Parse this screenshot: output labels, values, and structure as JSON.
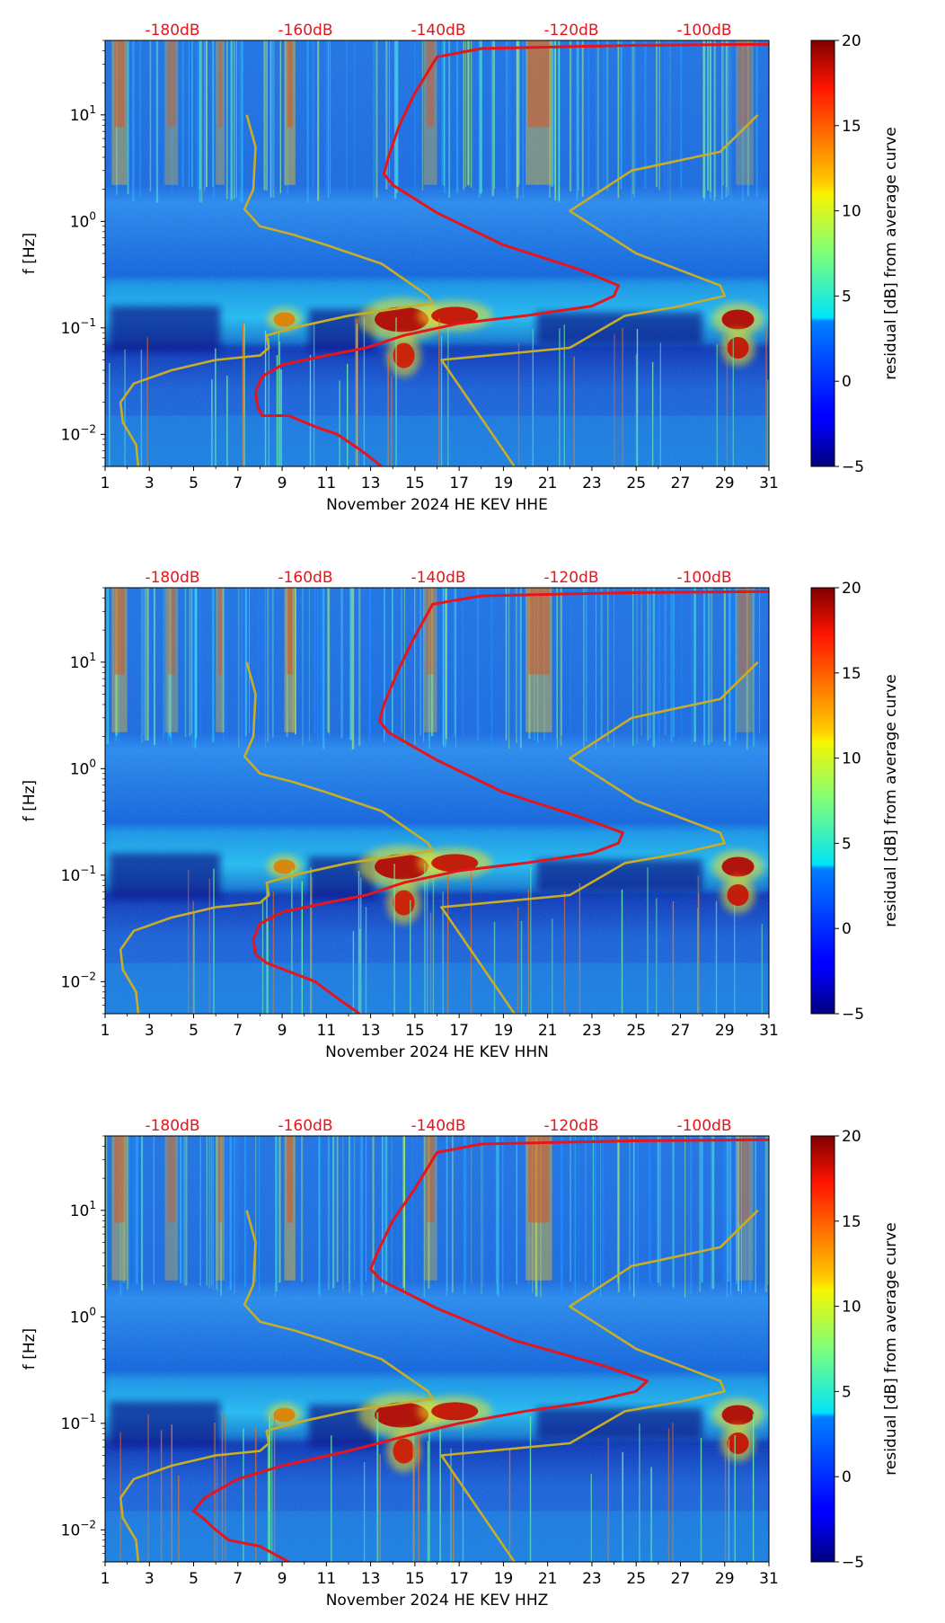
{
  "chart_data": [
    {
      "type": "heatmap",
      "title": "",
      "xlabel": "November 2024 HE KEV  HHE",
      "ylabel": "f [Hz]",
      "xlim": [
        1,
        31
      ],
      "ylim": [
        0.005,
        50
      ],
      "yscale": "log",
      "xticks": [
        1,
        3,
        5,
        7,
        9,
        11,
        13,
        15,
        17,
        19,
        21,
        23,
        25,
        27,
        29,
        31
      ],
      "yticks": [
        {
          "value": 0.01,
          "base": "10",
          "exp": "−2"
        },
        {
          "value": 0.1,
          "base": "10",
          "exp": "−1"
        },
        {
          "value": 1,
          "base": "10",
          "exp": "0"
        },
        {
          "value": 10,
          "base": "10",
          "exp": "1"
        }
      ],
      "top_labels": [
        "-180dB",
        "-160dB",
        "-140dB",
        "-120dB",
        "-100dB"
      ],
      "colorbar": {
        "label": "residual [dB] from average curve",
        "min": -5,
        "max": 20,
        "ticks": [
          20,
          15,
          10,
          5,
          0,
          -5
        ],
        "tick_labels": [
          "20",
          "15",
          "10",
          "5",
          "0",
          "−5"
        ]
      },
      "series": [
        {
          "name": "average PSD curve",
          "color": "#e8141c",
          "points": [
            [
              13.5,
              0.005
            ],
            [
              12.6,
              0.007
            ],
            [
              11.5,
              0.01
            ],
            [
              10.4,
              0.012
            ],
            [
              9.3,
              0.015
            ],
            [
              8.1,
              0.015
            ],
            [
              7.9,
              0.018
            ],
            [
              7.8,
              0.025
            ],
            [
              8.1,
              0.035
            ],
            [
              9.0,
              0.045
            ],
            [
              11.0,
              0.055
            ],
            [
              12.8,
              0.065
            ],
            [
              14.5,
              0.085
            ],
            [
              17.0,
              0.11
            ],
            [
              20.0,
              0.13
            ],
            [
              23.0,
              0.16
            ],
            [
              24.0,
              0.2
            ],
            [
              24.2,
              0.25
            ],
            [
              22.5,
              0.35
            ],
            [
              19.0,
              0.6
            ],
            [
              16.0,
              1.2
            ],
            [
              14.0,
              2.2
            ],
            [
              13.6,
              2.8
            ],
            [
              13.8,
              4.0
            ],
            [
              14.3,
              8.0
            ],
            [
              15.0,
              16.0
            ],
            [
              16.0,
              35.0
            ],
            [
              18.0,
              42.0
            ],
            [
              25.0,
              45.0
            ],
            [
              31.0,
              46.0
            ]
          ]
        },
        {
          "name": "model low-noise curve",
          "color": "#c8ad26",
          "points": [
            [
              2.5,
              0.005
            ],
            [
              2.4,
              0.008
            ],
            [
              1.8,
              0.013
            ],
            [
              1.7,
              0.02
            ],
            [
              2.3,
              0.03
            ],
            [
              4.0,
              0.04
            ],
            [
              6.0,
              0.05
            ],
            [
              8.0,
              0.055
            ],
            [
              8.4,
              0.065
            ],
            [
              8.3,
              0.085
            ],
            [
              9.5,
              0.1
            ],
            [
              12.0,
              0.13
            ],
            [
              15.8,
              0.17
            ],
            [
              15.6,
              0.2
            ],
            [
              13.5,
              0.4
            ],
            [
              11.0,
              0.6
            ],
            [
              9.5,
              0.75
            ],
            [
              8.0,
              0.9
            ],
            [
              7.3,
              1.3
            ],
            [
              7.7,
              2.0
            ],
            [
              7.8,
              5.0
            ],
            [
              7.4,
              10.0
            ]
          ]
        },
        {
          "name": "model high-noise curve",
          "color": "#c8ad26",
          "points": [
            [
              19.5,
              0.005
            ],
            [
              16.2,
              0.05
            ],
            [
              22.0,
              0.065
            ],
            [
              24.5,
              0.13
            ],
            [
              27.0,
              0.16
            ],
            [
              29.0,
              0.2
            ],
            [
              28.8,
              0.25
            ],
            [
              25.0,
              0.5
            ],
            [
              22.0,
              1.25
            ],
            [
              24.8,
              3.0
            ],
            [
              28.8,
              4.5
            ],
            [
              30.5,
              10.0
            ]
          ]
        }
      ]
    },
    {
      "type": "heatmap",
      "title": "",
      "xlabel": "November 2024 HE KEV  HHN",
      "ylabel": "f [Hz]",
      "xlim": [
        1,
        31
      ],
      "ylim": [
        0.005,
        50
      ],
      "yscale": "log",
      "xticks": [
        1,
        3,
        5,
        7,
        9,
        11,
        13,
        15,
        17,
        19,
        21,
        23,
        25,
        27,
        29,
        31
      ],
      "yticks": [
        {
          "value": 0.01,
          "base": "10",
          "exp": "−2"
        },
        {
          "value": 0.1,
          "base": "10",
          "exp": "−1"
        },
        {
          "value": 1,
          "base": "10",
          "exp": "0"
        },
        {
          "value": 10,
          "base": "10",
          "exp": "1"
        }
      ],
      "top_labels": [
        "-180dB",
        "-160dB",
        "-140dB",
        "-120dB",
        "-100dB"
      ],
      "colorbar": {
        "label": "residual [dB] from average curve",
        "min": -5,
        "max": 20,
        "ticks": [
          20,
          15,
          10,
          5,
          0,
          -5
        ],
        "tick_labels": [
          "20",
          "15",
          "10",
          "5",
          "0",
          "−5"
        ]
      },
      "series": [
        {
          "name": "average PSD curve",
          "color": "#e8141c",
          "points": [
            [
              12.5,
              0.005
            ],
            [
              11.5,
              0.007
            ],
            [
              10.5,
              0.01
            ],
            [
              9.5,
              0.012
            ],
            [
              8.3,
              0.015
            ],
            [
              7.8,
              0.018
            ],
            [
              7.7,
              0.025
            ],
            [
              8.0,
              0.035
            ],
            [
              9.0,
              0.045
            ],
            [
              11.0,
              0.055
            ],
            [
              12.8,
              0.065
            ],
            [
              14.5,
              0.085
            ],
            [
              17.0,
              0.11
            ],
            [
              20.0,
              0.13
            ],
            [
              23.0,
              0.16
            ],
            [
              24.2,
              0.2
            ],
            [
              24.4,
              0.25
            ],
            [
              22.5,
              0.35
            ],
            [
              19.0,
              0.6
            ],
            [
              16.0,
              1.2
            ],
            [
              13.8,
              2.2
            ],
            [
              13.4,
              2.8
            ],
            [
              13.6,
              4.0
            ],
            [
              14.2,
              8.0
            ],
            [
              14.9,
              16.0
            ],
            [
              15.8,
              35.0
            ],
            [
              18.0,
              42.0
            ],
            [
              25.0,
              45.0
            ],
            [
              31.0,
              46.0
            ]
          ]
        },
        {
          "name": "model low-noise curve",
          "color": "#c8ad26",
          "points": [
            [
              2.5,
              0.005
            ],
            [
              2.4,
              0.008
            ],
            [
              1.8,
              0.013
            ],
            [
              1.7,
              0.02
            ],
            [
              2.3,
              0.03
            ],
            [
              4.0,
              0.04
            ],
            [
              6.0,
              0.05
            ],
            [
              8.0,
              0.055
            ],
            [
              8.4,
              0.065
            ],
            [
              8.3,
              0.085
            ],
            [
              9.5,
              0.1
            ],
            [
              12.0,
              0.13
            ],
            [
              15.8,
              0.17
            ],
            [
              15.6,
              0.2
            ],
            [
              13.5,
              0.4
            ],
            [
              11.0,
              0.6
            ],
            [
              9.5,
              0.75
            ],
            [
              8.0,
              0.9
            ],
            [
              7.3,
              1.3
            ],
            [
              7.7,
              2.0
            ],
            [
              7.8,
              5.0
            ],
            [
              7.4,
              10.0
            ]
          ]
        },
        {
          "name": "model high-noise curve",
          "color": "#c8ad26",
          "points": [
            [
              19.5,
              0.005
            ],
            [
              16.2,
              0.05
            ],
            [
              22.0,
              0.065
            ],
            [
              24.5,
              0.13
            ],
            [
              27.0,
              0.16
            ],
            [
              29.0,
              0.2
            ],
            [
              28.8,
              0.25
            ],
            [
              25.0,
              0.5
            ],
            [
              22.0,
              1.25
            ],
            [
              24.8,
              3.0
            ],
            [
              28.8,
              4.5
            ],
            [
              30.5,
              10.0
            ]
          ]
        }
      ]
    },
    {
      "type": "heatmap",
      "title": "",
      "xlabel": "November 2024 HE KEV  HHZ",
      "ylabel": "f [Hz]",
      "xlim": [
        1,
        31
      ],
      "ylim": [
        0.005,
        50
      ],
      "yscale": "log",
      "xticks": [
        1,
        3,
        5,
        7,
        9,
        11,
        13,
        15,
        17,
        19,
        21,
        23,
        25,
        27,
        29,
        31
      ],
      "yticks": [
        {
          "value": 0.01,
          "base": "10",
          "exp": "−2"
        },
        {
          "value": 0.1,
          "base": "10",
          "exp": "−1"
        },
        {
          "value": 1,
          "base": "10",
          "exp": "0"
        },
        {
          "value": 10,
          "base": "10",
          "exp": "1"
        }
      ],
      "top_labels": [
        "-180dB",
        "-160dB",
        "-140dB",
        "-120dB",
        "-100dB"
      ],
      "colorbar": {
        "label": "residual [dB] from average curve",
        "min": -5,
        "max": 20,
        "ticks": [
          20,
          15,
          10,
          5,
          0,
          -5
        ],
        "tick_labels": [
          "20",
          "15",
          "10",
          "5",
          "0",
          "−5"
        ]
      },
      "series": [
        {
          "name": "average PSD curve",
          "color": "#e8141c",
          "points": [
            [
              9.3,
              0.005
            ],
            [
              8.0,
              0.007
            ],
            [
              6.6,
              0.008
            ],
            [
              6.0,
              0.01
            ],
            [
              5.4,
              0.013
            ],
            [
              5.0,
              0.015
            ],
            [
              5.5,
              0.02
            ],
            [
              7.0,
              0.03
            ],
            [
              9.0,
              0.04
            ],
            [
              12.0,
              0.055
            ],
            [
              14.5,
              0.075
            ],
            [
              17.0,
              0.1
            ],
            [
              20.0,
              0.13
            ],
            [
              23.0,
              0.16
            ],
            [
              25.0,
              0.2
            ],
            [
              25.5,
              0.25
            ],
            [
              23.5,
              0.35
            ],
            [
              19.5,
              0.6
            ],
            [
              16.0,
              1.2
            ],
            [
              13.5,
              2.2
            ],
            [
              13.0,
              2.8
            ],
            [
              13.3,
              4.0
            ],
            [
              14.0,
              8.0
            ],
            [
              15.0,
              16.0
            ],
            [
              16.0,
              35.0
            ],
            [
              18.0,
              42.0
            ],
            [
              25.0,
              45.0
            ],
            [
              31.0,
              46.0
            ]
          ]
        },
        {
          "name": "model low-noise curve",
          "color": "#c8ad26",
          "points": [
            [
              2.5,
              0.005
            ],
            [
              2.4,
              0.008
            ],
            [
              1.8,
              0.013
            ],
            [
              1.7,
              0.02
            ],
            [
              2.3,
              0.03
            ],
            [
              4.0,
              0.04
            ],
            [
              6.0,
              0.05
            ],
            [
              8.0,
              0.055
            ],
            [
              8.4,
              0.065
            ],
            [
              8.3,
              0.085
            ],
            [
              9.5,
              0.1
            ],
            [
              12.0,
              0.13
            ],
            [
              15.8,
              0.17
            ],
            [
              15.6,
              0.2
            ],
            [
              13.5,
              0.4
            ],
            [
              11.0,
              0.6
            ],
            [
              9.5,
              0.75
            ],
            [
              8.0,
              0.9
            ],
            [
              7.3,
              1.3
            ],
            [
              7.7,
              2.0
            ],
            [
              7.8,
              5.0
            ],
            [
              7.4,
              10.0
            ]
          ]
        },
        {
          "name": "model high-noise curve",
          "color": "#c8ad26",
          "points": [
            [
              19.5,
              0.005
            ],
            [
              16.2,
              0.05
            ],
            [
              22.0,
              0.065
            ],
            [
              24.5,
              0.13
            ],
            [
              27.0,
              0.16
            ],
            [
              29.0,
              0.2
            ],
            [
              28.8,
              0.25
            ],
            [
              25.0,
              0.5
            ],
            [
              22.0,
              1.25
            ],
            [
              24.8,
              3.0
            ],
            [
              28.8,
              4.5
            ],
            [
              30.5,
              10.0
            ]
          ]
        }
      ]
    }
  ]
}
